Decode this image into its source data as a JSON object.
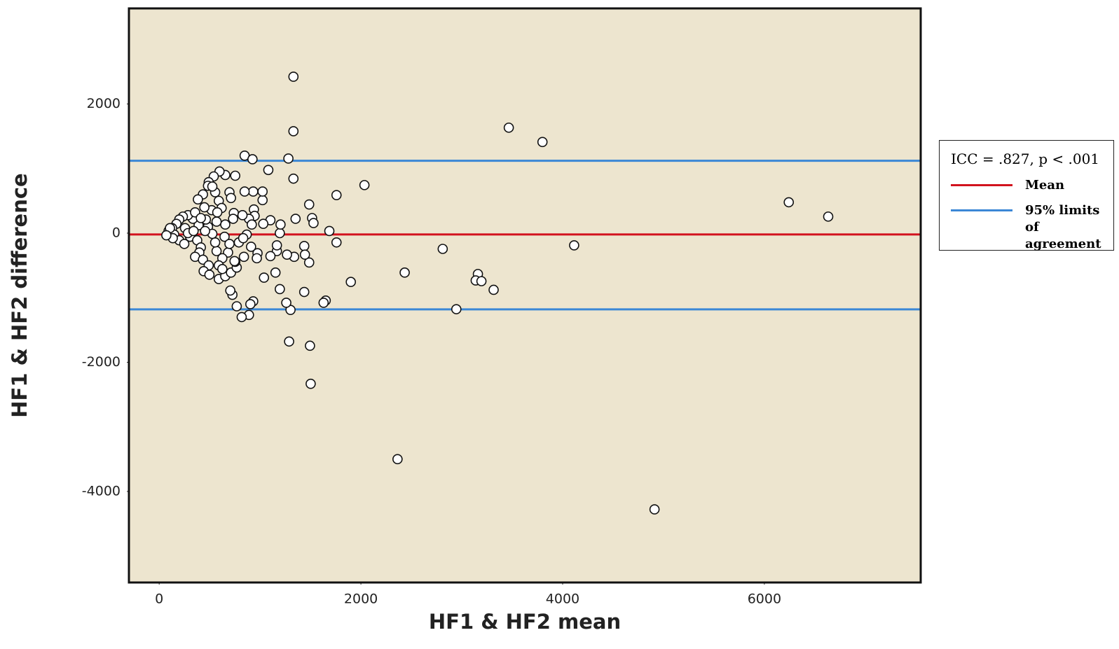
{
  "chart_data": {
    "type": "scatter",
    "x_label": "HF1 & HF2 mean",
    "y_label": "HF1 & HF2 difference",
    "xlim": [
      -300,
      7550
    ],
    "ylim": [
      -5410,
      3480
    ],
    "xticks": [
      0,
      2000,
      4000,
      6000
    ],
    "yticks": [
      2000,
      0,
      -2000,
      -4000
    ],
    "background": "#ede5cf",
    "point_color": "#ffffff",
    "legend_title": "ICC = .827, p < .001",
    "mean_line": {
      "name": "Mean",
      "value": -20,
      "color": "#d2121e"
    },
    "limits": {
      "name": "95% limits of agreement",
      "values": [
        1120,
        -1180
      ],
      "color": "#3b87d6"
    },
    "x": [
      1331,
      1331,
      3466,
      3800,
      1281,
      847,
      925,
      1082,
      1331,
      2035,
      1758,
      6242,
      6633,
      1487,
      1352,
      1516,
      1530,
      1687,
      1758,
      2811,
      4114,
      2434,
      1900,
      3160,
      3138,
      3195,
      3316,
      1438,
      1651,
      1630,
      2946,
      1302,
      1260,
      1288,
      1495,
      1502,
      2363,
      4911,
      932,
      904,
      890,
      818,
      769,
      726,
      705,
      1196,
      1153,
      1039,
      1338,
      1267,
      1487,
      1438,
      1445,
      1167,
      1167,
      1103,
      1196,
      1203,
      1103,
      1025,
      1025,
      932,
      847,
      939,
      946,
      890,
      918,
      1032,
      868,
      911,
      975,
      968,
      840,
      754,
      655,
      598,
      541,
      491,
      484,
      434,
      384,
      555,
      697,
      712,
      591,
      619,
      520,
      448,
      740,
      826,
      733,
      655,
      569,
      484,
      391,
      334,
      285,
      235,
      199,
      171,
      128,
      93,
      149,
      199,
      249,
      306,
      377,
      413,
      398,
      356,
      434,
      491,
      441,
      498,
      591,
      655,
      712,
      769,
      754,
      683,
      626,
      569,
      555,
      648,
      697,
      790,
      833,
      256,
      285,
      341,
      527,
      455,
      135,
      107,
      71,
      591,
      626,
      747,
      463,
      576,
      356,
      413,
      527
    ],
    "values": [
      2422,
      1578,
      1633,
      1411,
      1155,
      1200,
      1144,
      978,
      844,
      744,
      589,
      478,
      256,
      444,
      222,
      233,
      156,
      33,
      -144,
      -244,
      -189,
      -611,
      -756,
      -633,
      -733,
      -744,
      -878,
      -911,
      -1044,
      -1078,
      -1178,
      -1189,
      -1078,
      -1678,
      -1744,
      -2333,
      -3500,
      -4278,
      -1056,
      -1100,
      -1267,
      -1300,
      -1133,
      -955,
      -889,
      -867,
      -611,
      -689,
      -367,
      -333,
      -455,
      -200,
      -333,
      -278,
      -189,
      -356,
      0,
      133,
      200,
      511,
      644,
      644,
      644,
      367,
      267,
      222,
      133,
      144,
      -22,
      -211,
      -311,
      -389,
      -367,
      889,
      900,
      955,
      878,
      789,
      733,
      600,
      522,
      633,
      633,
      544,
      500,
      389,
      356,
      400,
      311,
      278,
      222,
      133,
      178,
      100,
      122,
      222,
      278,
      256,
      211,
      144,
      78,
      33,
      -22,
      -111,
      -167,
      -56,
      -111,
      -222,
      -300,
      -367,
      -411,
      -500,
      -589,
      -644,
      -711,
      -667,
      -611,
      -533,
      -444,
      -300,
      -389,
      -278,
      -144,
      -56,
      -167,
      -144,
      -78,
      78,
      0,
      33,
      -11,
      33,
      -78,
      78,
      -33,
      -500,
      -556,
      -433,
      211,
      322,
      322,
      233,
      722
    ]
  }
}
